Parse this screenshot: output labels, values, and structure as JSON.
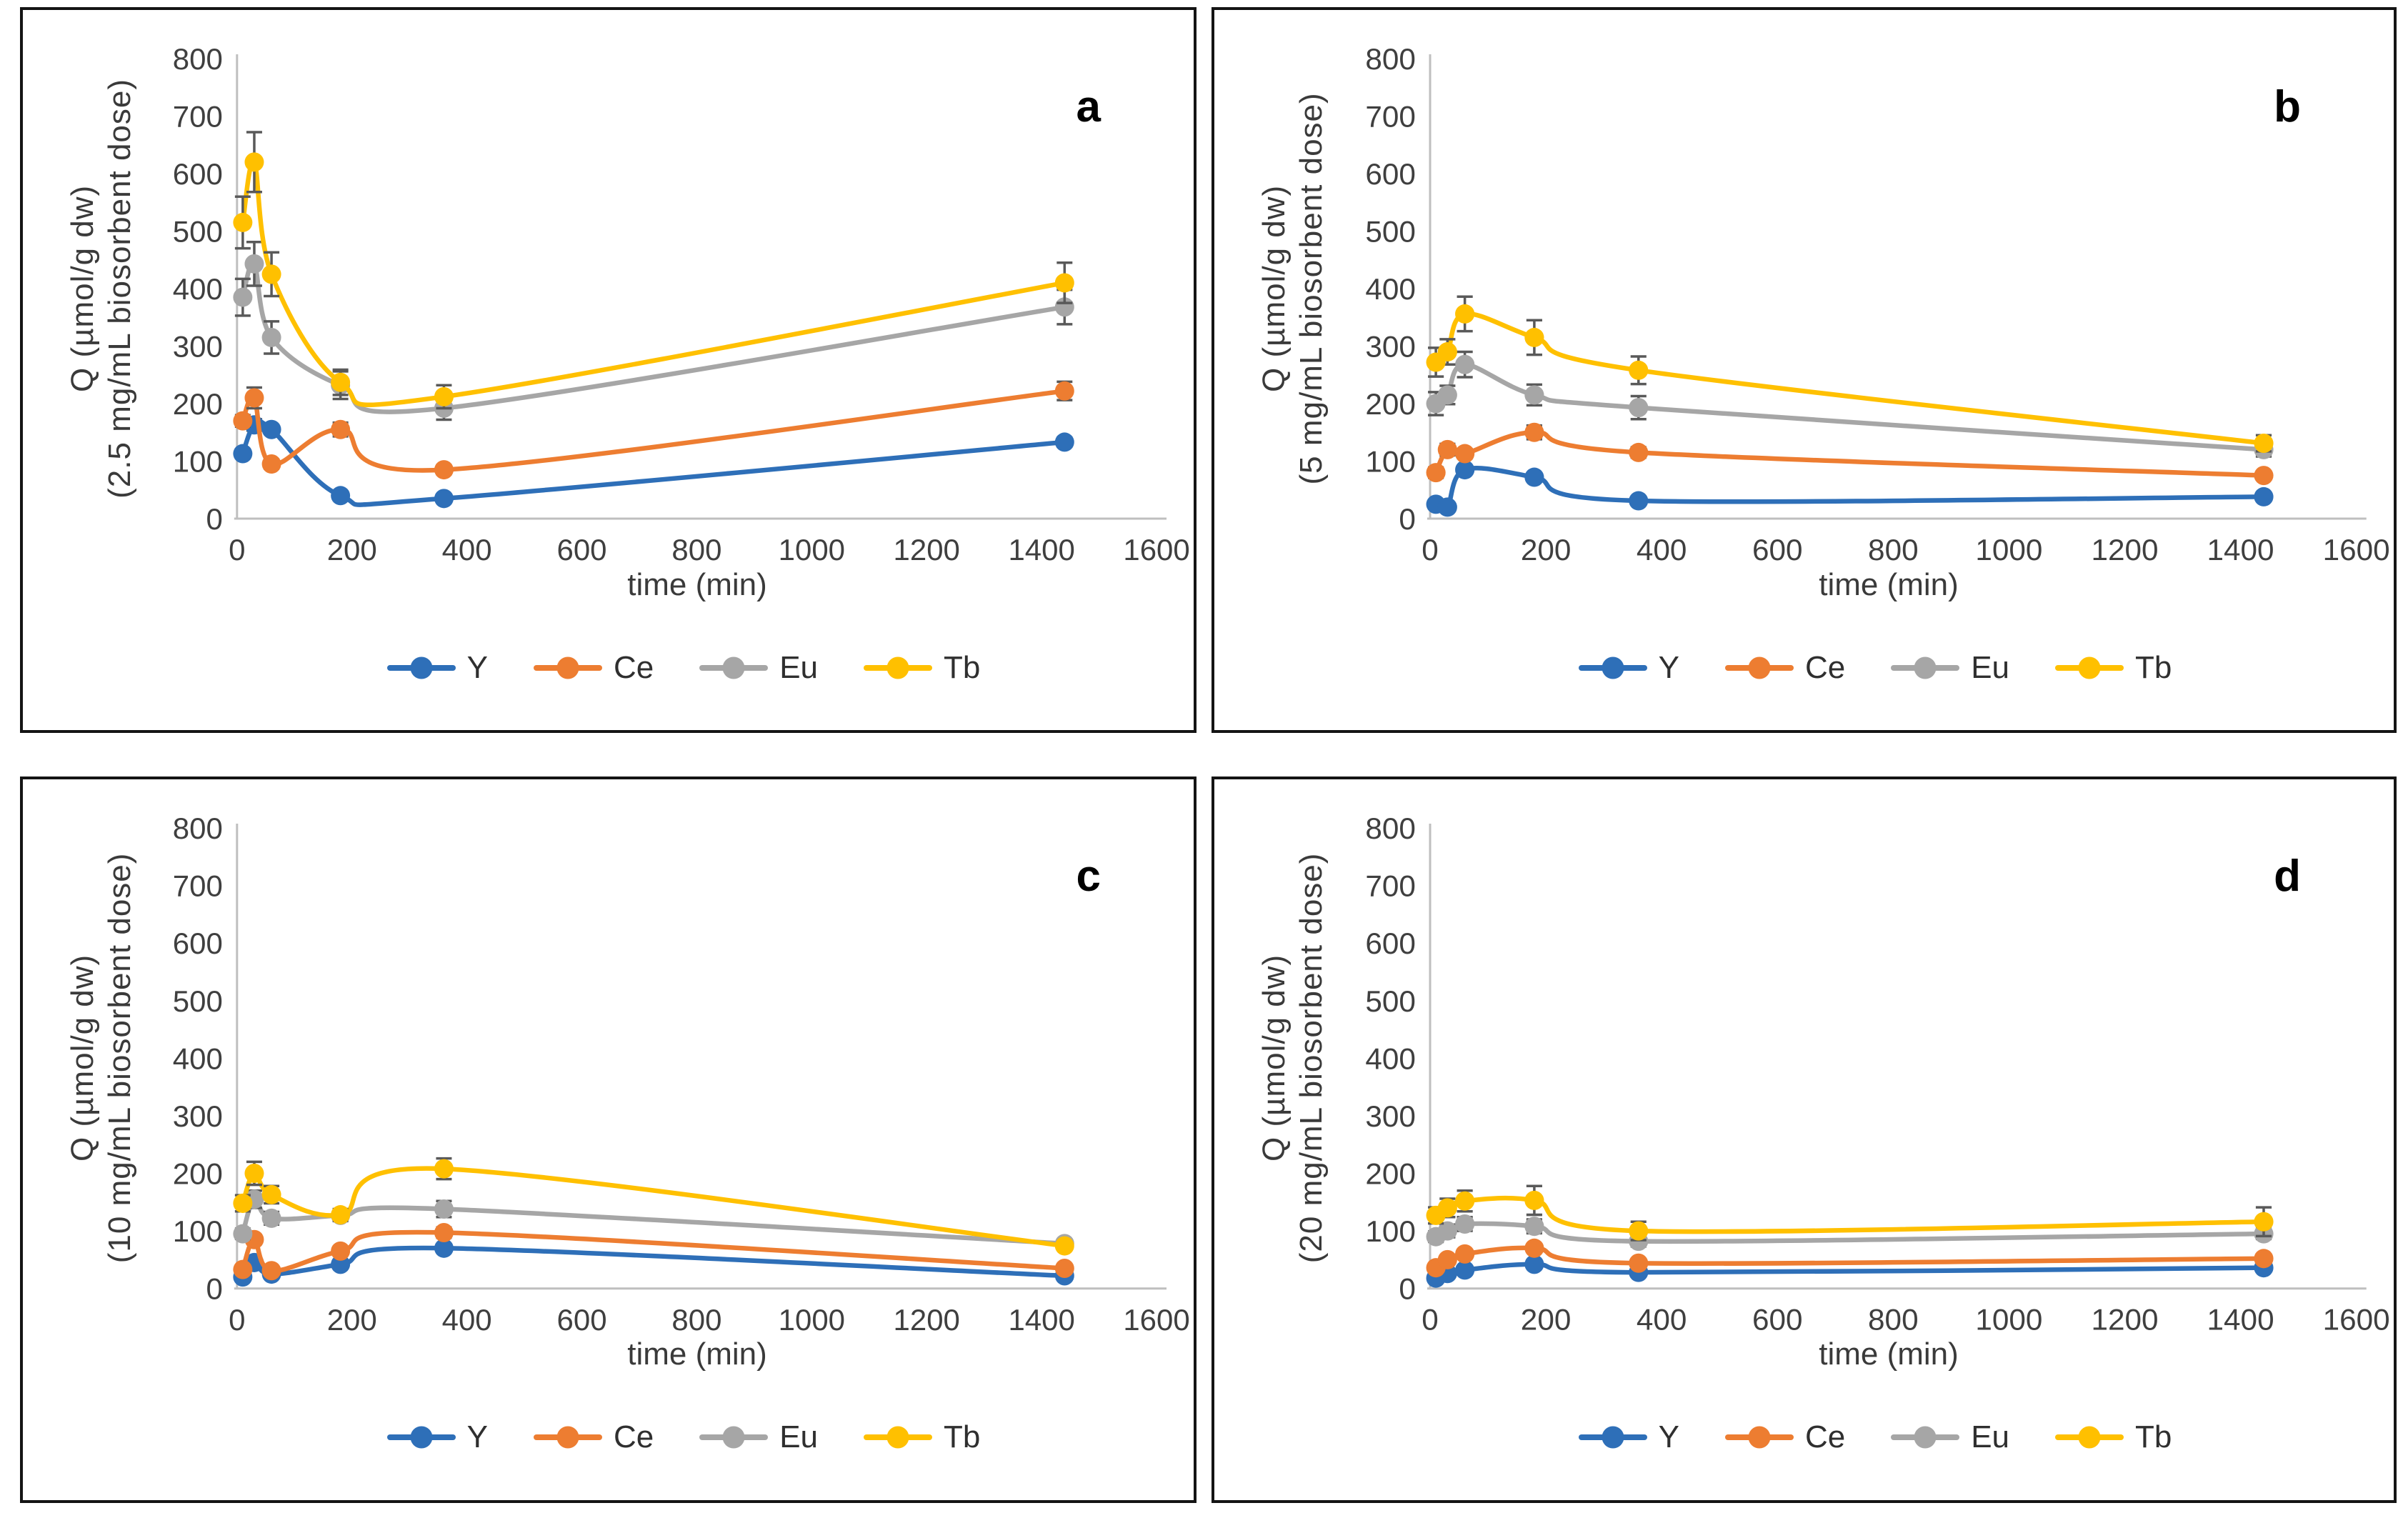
{
  "figure": {
    "xlabel": "time (min)",
    "ylabel_line1": "Q (µmol/g dw)",
    "legend_labels": [
      "Y",
      "Ce",
      "Eu",
      "Tb"
    ],
    "colors": {
      "Y": "#2E6FB8",
      "Ce": "#ED7D31",
      "Eu": "#A6A6A6",
      "Tb": "#FFC000",
      "error_bar": "#595959",
      "axis_line": "#BFBFBF",
      "tick_text": "#3F3F3F",
      "panel_border": "#141414"
    }
  },
  "chart_data": [
    {
      "type": "line",
      "panel_label": "a",
      "ylabel_line2": "(2.5 mg/mL biosorbent dose)",
      "xlabel": "time (min)",
      "x": [
        10,
        30,
        60,
        180,
        360,
        1440
      ],
      "xlim": [
        0,
        1600
      ],
      "x_tick_step": 200,
      "ylim": [
        0,
        800
      ],
      "y_tick_step": 100,
      "grid": false,
      "legend_position": "bottom",
      "series": [
        {
          "name": "Y",
          "color": "#2E6FB8",
          "values": [
            113,
            163,
            155,
            40,
            35,
            133
          ],
          "errors": [
            8,
            10,
            8,
            5,
            5,
            8
          ]
        },
        {
          "name": "Ce",
          "color": "#ED7D31",
          "values": [
            170,
            210,
            95,
            155,
            85,
            222
          ],
          "errors": [
            10,
            18,
            8,
            12,
            8,
            16
          ]
        },
        {
          "name": "Eu",
          "color": "#A6A6A6",
          "values": [
            385,
            443,
            315,
            232,
            192,
            368
          ],
          "errors": [
            32,
            38,
            28,
            24,
            20,
            30
          ]
        },
        {
          "name": "Tb",
          "color": "#FFC000",
          "values": [
            515,
            620,
            425,
            237,
            212,
            410
          ],
          "errors": [
            45,
            52,
            38,
            22,
            20,
            35
          ]
        }
      ]
    },
    {
      "type": "line",
      "panel_label": "b",
      "ylabel_line2": "(5 mg/mL biosorbent dose)",
      "xlabel": "time (min)",
      "x": [
        10,
        30,
        60,
        180,
        360,
        1440
      ],
      "xlim": [
        0,
        1600
      ],
      "x_tick_step": 200,
      "ylim": [
        0,
        800
      ],
      "y_tick_step": 100,
      "grid": false,
      "legend_position": "bottom",
      "series": [
        {
          "name": "Y",
          "color": "#2E6FB8",
          "values": [
            25,
            20,
            85,
            72,
            31,
            38
          ],
          "errors": [
            5,
            5,
            7,
            6,
            5,
            5
          ]
        },
        {
          "name": "Ce",
          "color": "#ED7D31",
          "values": [
            80,
            120,
            113,
            150,
            115,
            75
          ],
          "errors": [
            9,
            10,
            8,
            12,
            9,
            7
          ]
        },
        {
          "name": "Eu",
          "color": "#A6A6A6",
          "values": [
            200,
            215,
            268,
            215,
            193,
            120
          ],
          "errors": [
            20,
            16,
            22,
            18,
            20,
            12
          ]
        },
        {
          "name": "Tb",
          "color": "#FFC000",
          "values": [
            272,
            290,
            356,
            315,
            258,
            131
          ],
          "errors": [
            25,
            22,
            30,
            30,
            24,
            14
          ]
        }
      ]
    },
    {
      "type": "line",
      "panel_label": "c",
      "ylabel_line2": "(10 mg/mL biosorbent dose)",
      "xlabel": "time (min)",
      "x": [
        10,
        30,
        60,
        180,
        360,
        1440
      ],
      "xlim": [
        0,
        1600
      ],
      "x_tick_step": 200,
      "ylim": [
        0,
        800
      ],
      "y_tick_step": 100,
      "grid": false,
      "legend_position": "bottom",
      "series": [
        {
          "name": "Y",
          "color": "#2E6FB8",
          "values": [
            20,
            45,
            25,
            42,
            70,
            22
          ],
          "errors": [
            4,
            6,
            4,
            5,
            7,
            4
          ]
        },
        {
          "name": "Ce",
          "color": "#ED7D31",
          "values": [
            33,
            85,
            31,
            65,
            97,
            35
          ],
          "errors": [
            5,
            8,
            5,
            6,
            9,
            5
          ]
        },
        {
          "name": "Eu",
          "color": "#A6A6A6",
          "values": [
            95,
            155,
            122,
            127,
            138,
            78
          ],
          "errors": [
            9,
            15,
            11,
            10,
            14,
            6
          ]
        },
        {
          "name": "Tb",
          "color": "#FFC000",
          "values": [
            148,
            200,
            163,
            128,
            208,
            74
          ],
          "errors": [
            14,
            20,
            15,
            10,
            18,
            7
          ]
        }
      ]
    },
    {
      "type": "line",
      "panel_label": "d",
      "ylabel_line2": "(20 mg/mL biosorbent dose)",
      "xlabel": "time (min)",
      "x": [
        10,
        30,
        60,
        180,
        360,
        1440
      ],
      "xlim": [
        0,
        1600
      ],
      "x_tick_step": 200,
      "ylim": [
        0,
        800
      ],
      "y_tick_step": 100,
      "grid": false,
      "legend_position": "bottom",
      "series": [
        {
          "name": "Y",
          "color": "#2E6FB8",
          "values": [
            18,
            26,
            32,
            42,
            28,
            36
          ],
          "errors": [
            4,
            4,
            5,
            5,
            5,
            5
          ]
        },
        {
          "name": "Ce",
          "color": "#ED7D31",
          "values": [
            36,
            50,
            60,
            70,
            44,
            52
          ],
          "errors": [
            5,
            6,
            7,
            7,
            6,
            6
          ]
        },
        {
          "name": "Eu",
          "color": "#A6A6A6",
          "values": [
            90,
            100,
            112,
            108,
            82,
            95
          ],
          "errors": [
            9,
            11,
            12,
            12,
            9,
            9
          ]
        },
        {
          "name": "Tb",
          "color": "#FFC000",
          "values": [
            127,
            140,
            152,
            153,
            100,
            116
          ],
          "errors": [
            14,
            16,
            18,
            25,
            16,
            25
          ]
        }
      ]
    }
  ]
}
